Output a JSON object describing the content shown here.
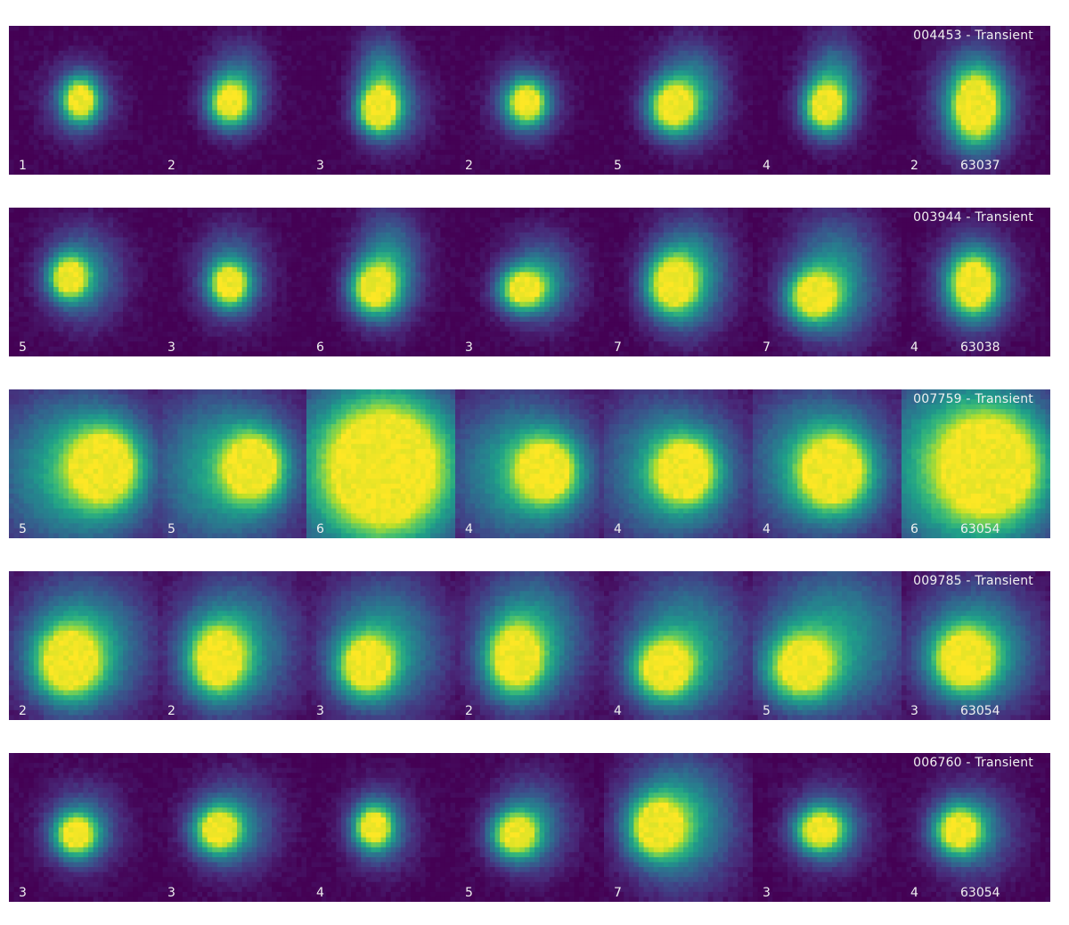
{
  "colormap": [
    "#440154",
    "#482878",
    "#3e4989",
    "#31688e",
    "#26828e",
    "#1f9e89",
    "#35b779",
    "#6ece58",
    "#b5de2b",
    "#fde725"
  ],
  "rows": [
    {
      "title": "004453 - Transient",
      "id": "63037",
      "panels": [
        {
          "label": "1"
        },
        {
          "label": "2"
        },
        {
          "label": "3"
        },
        {
          "label": "2"
        },
        {
          "label": "5"
        },
        {
          "label": "4"
        },
        {
          "label": "2"
        }
      ]
    },
    {
      "title": "003944 - Transient",
      "id": "63038",
      "panels": [
        {
          "label": "5"
        },
        {
          "label": "3"
        },
        {
          "label": "6"
        },
        {
          "label": "3"
        },
        {
          "label": "7"
        },
        {
          "label": "7"
        },
        {
          "label": "4"
        }
      ]
    },
    {
      "title": "007759 - Transient",
      "id": "63054",
      "panels": [
        {
          "label": "5"
        },
        {
          "label": "5"
        },
        {
          "label": "6"
        },
        {
          "label": "4"
        },
        {
          "label": "4"
        },
        {
          "label": "4"
        },
        {
          "label": "6"
        }
      ]
    },
    {
      "title": "009785 - Transient",
      "id": "63054",
      "panels": [
        {
          "label": "2"
        },
        {
          "label": "2"
        },
        {
          "label": "3"
        },
        {
          "label": "2"
        },
        {
          "label": "4"
        },
        {
          "label": "5"
        },
        {
          "label": "3"
        }
      ]
    },
    {
      "title": "006760 - Transient",
      "id": "63054",
      "panels": [
        {
          "label": "3"
        },
        {
          "label": "3"
        },
        {
          "label": "4"
        },
        {
          "label": "5"
        },
        {
          "label": "7"
        },
        {
          "label": "3"
        },
        {
          "label": "4"
        }
      ]
    }
  ]
}
